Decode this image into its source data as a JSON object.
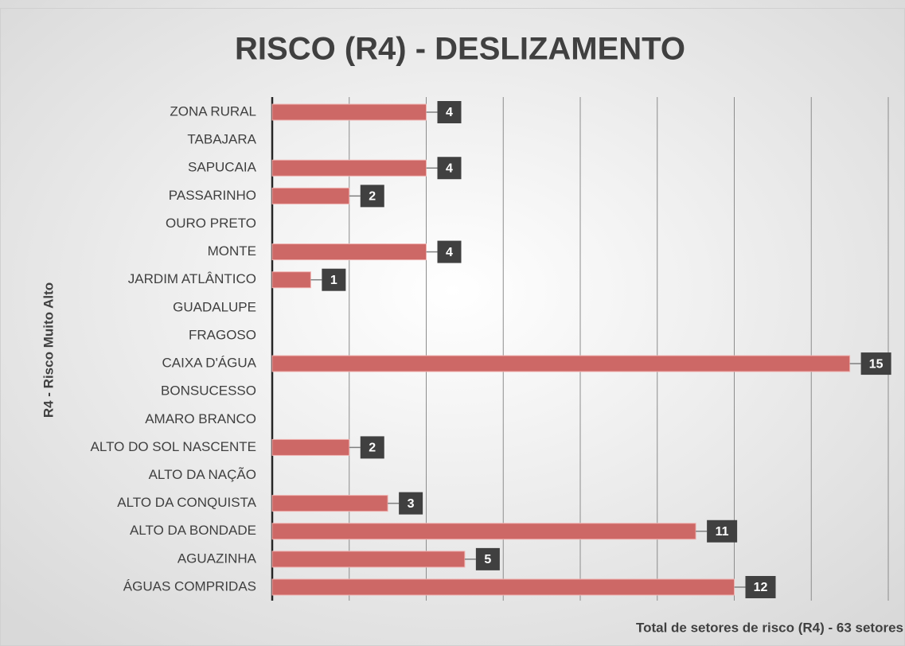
{
  "chart_data": {
    "type": "bar",
    "orientation": "horizontal",
    "title": "RISCO (R4) - DESLIZAMENTO",
    "y_label": "R4 - Risco Muito Alto",
    "x_label": "Total de setores de risco (R4) - 63 setores",
    "categories": [
      "ZONA RURAL",
      "TABAJARA",
      "SAPUCAIA",
      "PASSARINHO",
      "OURO PRETO",
      "MONTE",
      "JARDIM ATLÂNTICO",
      "GUADALUPE",
      "FRAGOSO",
      "CAIXA D'ÁGUA",
      "BONSUCESSO",
      "AMARO BRANCO",
      "ALTO DO SOL NASCENTE",
      "ALTO DA NAÇÃO",
      "ALTO DA CONQUISTA",
      "ALTO DA BONDADE",
      "AGUAZINHA",
      "ÁGUAS COMPRIDAS"
    ],
    "values": [
      4,
      null,
      4,
      2,
      null,
      4,
      1,
      null,
      null,
      15,
      null,
      null,
      2,
      null,
      3,
      11,
      5,
      12
    ],
    "color": "#cd6866",
    "xlim": [
      0,
      16
    ],
    "xticks": [
      0,
      2,
      4,
      6,
      8,
      10,
      12,
      14,
      16
    ],
    "grid": true
  }
}
